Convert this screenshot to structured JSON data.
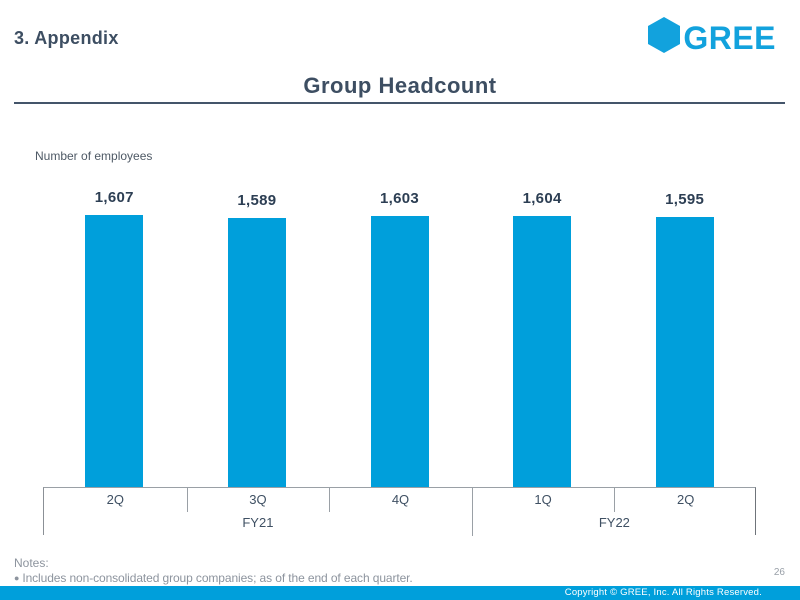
{
  "slide": {
    "section_title": "3. Appendix",
    "page_number": "26",
    "footer_copyright": "Copyright © GREE, Inc. All Rights Reserved."
  },
  "logo": {
    "text": "GREE",
    "color": "#12a2dd"
  },
  "title": "Group Headcount",
  "chart_data": {
    "type": "bar",
    "title": "Group Headcount",
    "ylabel": "Number of employees",
    "categories": [
      "2Q",
      "3Q",
      "4Q",
      "1Q",
      "2Q"
    ],
    "values": [
      1607,
      1589,
      1603,
      1604,
      1595
    ],
    "value_labels": [
      "1,607",
      "1,589",
      "1,603",
      "1,604",
      "1,595"
    ],
    "fiscal_year_groups": [
      {
        "label": "FY21",
        "span": 3
      },
      {
        "label": "FY22",
        "span": 2
      }
    ],
    "bar_color": "#009fdb",
    "ylim": [
      0,
      1607
    ],
    "grid": false,
    "legend": false
  },
  "notes": {
    "heading": "Notes:",
    "bullet": "●",
    "items": [
      "Includes non-consolidated group companies; as of the end of each quarter."
    ]
  }
}
